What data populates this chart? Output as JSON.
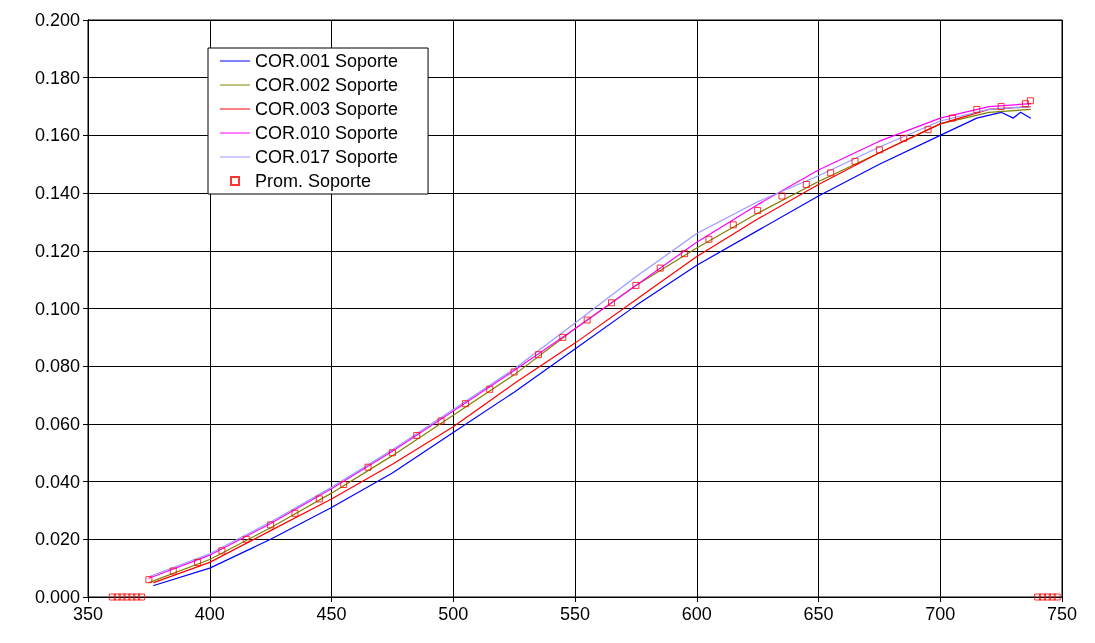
{
  "chart_data": {
    "type": "line",
    "xlim": [
      350,
      750
    ],
    "xticks": [
      350,
      400,
      450,
      500,
      550,
      600,
      650,
      700,
      750
    ],
    "ylim": [
      0,
      0.2
    ],
    "yticks": [
      {
        "value": 0,
        "label": "0.000"
      },
      {
        "value": 0.02,
        "label": "0.020"
      },
      {
        "value": 0.04,
        "label": "0.040"
      },
      {
        "value": 0.06,
        "label": "0.060"
      },
      {
        "value": 0.08,
        "label": "0.080"
      },
      {
        "value": 0.1,
        "label": "0.100"
      },
      {
        "value": 0.12,
        "label": "0.120"
      },
      {
        "value": 0.14,
        "label": "0.140"
      },
      {
        "value": 0.16,
        "label": "0.160"
      },
      {
        "value": 0.18,
        "label": "0.180"
      },
      {
        "value": 0.2,
        "label": "0.200"
      }
    ],
    "grid": true,
    "legend": "top left",
    "marker": "none",
    "line_style": "solid",
    "series": [
      {
        "name": "COR.001 Soporte",
        "color": "#0000ff",
        "x": [
          377,
          400,
          425,
          450,
          475,
          500,
          525,
          550,
          575,
          600,
          625,
          650,
          675,
          700,
          715,
          725,
          730,
          733,
          737
        ],
        "values": [
          0.004,
          0.01,
          0.02,
          0.031,
          0.043,
          0.057,
          0.071,
          0.086,
          0.101,
          0.115,
          0.127,
          0.139,
          0.15,
          0.16,
          0.166,
          0.168,
          0.166,
          0.168,
          0.166
        ]
      },
      {
        "name": "COR.002 Soporte",
        "color": "#808000",
        "x": [
          375,
          400,
          425,
          450,
          475,
          500,
          525,
          550,
          575,
          600,
          625,
          650,
          675,
          700,
          720,
          737
        ],
        "values": [
          0.005,
          0.013,
          0.024,
          0.036,
          0.049,
          0.063,
          0.077,
          0.093,
          0.108,
          0.121,
          0.133,
          0.144,
          0.154,
          0.164,
          0.168,
          0.169
        ]
      },
      {
        "name": "COR.003 Soporte",
        "color": "#ff0000",
        "x": [
          377,
          400,
          425,
          450,
          475,
          500,
          525,
          550,
          575,
          600,
          625,
          650,
          675,
          700,
          720,
          737
        ],
        "values": [
          0.005,
          0.012,
          0.023,
          0.034,
          0.046,
          0.059,
          0.074,
          0.088,
          0.103,
          0.118,
          0.131,
          0.143,
          0.154,
          0.164,
          0.169,
          0.17
        ]
      },
      {
        "name": "COR.010 Soporte",
        "color": "#ff00ff",
        "x": [
          375,
          400,
          425,
          450,
          475,
          500,
          525,
          550,
          575,
          600,
          625,
          650,
          675,
          700,
          720,
          737
        ],
        "values": [
          0.0065,
          0.0145,
          0.0255,
          0.0375,
          0.0505,
          0.0645,
          0.0785,
          0.093,
          0.108,
          0.123,
          0.136,
          0.148,
          0.158,
          0.166,
          0.17,
          0.171
        ]
      },
      {
        "name": "COR.017 Soporte",
        "color": "#9999ff",
        "x": [
          375,
          400,
          425,
          450,
          475,
          500,
          525,
          550,
          575,
          600,
          625,
          650,
          675,
          700,
          720,
          737
        ],
        "values": [
          0.007,
          0.015,
          0.026,
          0.038,
          0.051,
          0.065,
          0.079,
          0.095,
          0.111,
          0.126,
          0.137,
          0.146,
          0.156,
          0.165,
          0.169,
          0.17
        ]
      },
      {
        "name": "Prom. Soporte",
        "type": "scatter",
        "marker": "square",
        "color": "#ff0000",
        "x": [
          360,
          362,
          364,
          366,
          368,
          370,
          372,
          375,
          385,
          395,
          405,
          415,
          425,
          435,
          445,
          455,
          465,
          475,
          485,
          495,
          505,
          515,
          525,
          535,
          545,
          555,
          565,
          575,
          585,
          595,
          605,
          615,
          625,
          635,
          645,
          655,
          665,
          675,
          685,
          695,
          705,
          715,
          725,
          735,
          737,
          740,
          742,
          744,
          746,
          748
        ],
        "values": [
          0,
          0,
          0,
          0,
          0,
          0,
          0,
          0.006,
          0.009,
          0.012,
          0.016,
          0.02,
          0.025,
          0.029,
          0.034,
          0.039,
          0.045,
          0.05,
          0.056,
          0.061,
          0.067,
          0.072,
          0.078,
          0.084,
          0.09,
          0.096,
          0.102,
          0.108,
          0.114,
          0.119,
          0.124,
          0.129,
          0.134,
          0.139,
          0.143,
          0.147,
          0.151,
          0.155,
          0.159,
          0.162,
          0.166,
          0.169,
          0.17,
          0.171,
          0.172,
          0,
          0,
          0,
          0,
          0
        ]
      }
    ]
  }
}
